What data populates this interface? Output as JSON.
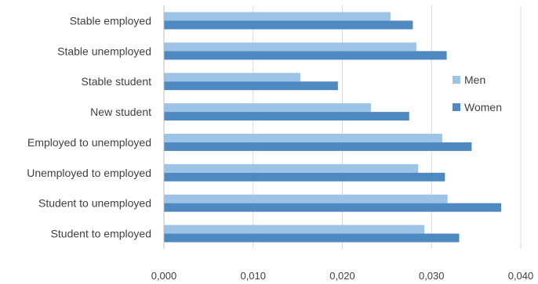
{
  "chart_data": {
    "type": "bar",
    "orientation": "horizontal",
    "title": "",
    "xlabel": "",
    "ylabel": "",
    "categories": [
      "Stable employed",
      "Stable unemployed",
      "Stable student",
      "New student",
      "Employed to unemployed",
      "Unemployed to employed",
      "Student to unemployed",
      "Student to employed"
    ],
    "series": [
      {
        "name": "Men",
        "color": "#9DC3E6",
        "values": [
          0.0254,
          0.0283,
          0.0153,
          0.0232,
          0.0312,
          0.0285,
          0.0318,
          0.0292
        ]
      },
      {
        "name": "Women",
        "color": "#4F89C2",
        "values": [
          0.0279,
          0.0317,
          0.0195,
          0.0275,
          0.0345,
          0.0315,
          0.0378,
          0.0331
        ]
      }
    ],
    "xlim": [
      0,
      0.04
    ],
    "xticks": [
      0,
      0.01,
      0.02,
      0.03,
      0.04
    ],
    "xtick_labels": [
      "0,000",
      "0,010",
      "0,020",
      "0,030",
      "0,040"
    ],
    "grid": "vertical",
    "legend_position": "right"
  }
}
